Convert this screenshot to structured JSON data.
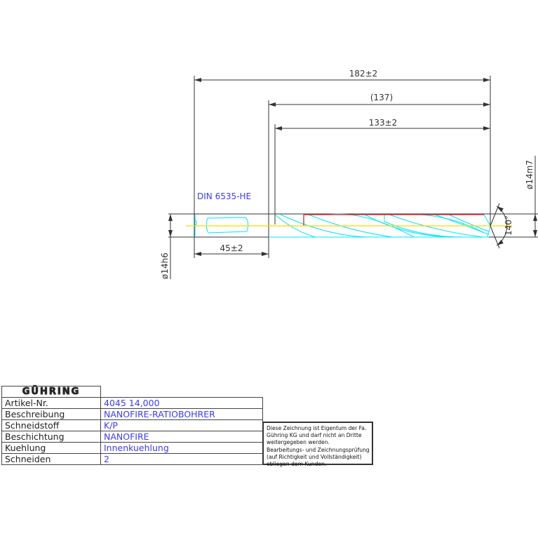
{
  "drawing": {
    "din_label": "DIN 6535-HE",
    "dimensions": {
      "overall_length": "182±2",
      "reference_length": "(137)",
      "flute_length": "133±2",
      "shank_length": "45±2",
      "shank_diameter": "ø14h6",
      "cutting_diameter": "ø14m7",
      "point_angle": "140°"
    },
    "colors": {
      "outline": "#00e5ff",
      "centerline": "#ffd800",
      "margin": "#ff2020",
      "dimension": "#333333",
      "text_blue": "#3a3aff"
    }
  },
  "title_block": {
    "logo": "GÜHRING",
    "rows": [
      {
        "label": "Artikel-Nr.",
        "value": "4045 14,000"
      },
      {
        "label": "Beschreibung",
        "value": "NANOFIRE-RATIOBOHRER"
      },
      {
        "label": "Schneidstoff",
        "value": "K/P"
      },
      {
        "label": "Beschichtung",
        "value": "NANOFIRE"
      },
      {
        "label": "Kuehlung",
        "value": "Innenkuehlung"
      },
      {
        "label": "Schneiden",
        "value": "2"
      }
    ],
    "note_lines": [
      "Diese Zeichnung ist Eigentum der Fa.",
      "Gühring KG und darf nicht an Dritte",
      "weitergegeben werden.",
      "Bearbeitungs- und Zeichnungsprüfung",
      "(auf Richtigkeit und Vollständigkeit)",
      "obliegen dem Kunden."
    ]
  }
}
